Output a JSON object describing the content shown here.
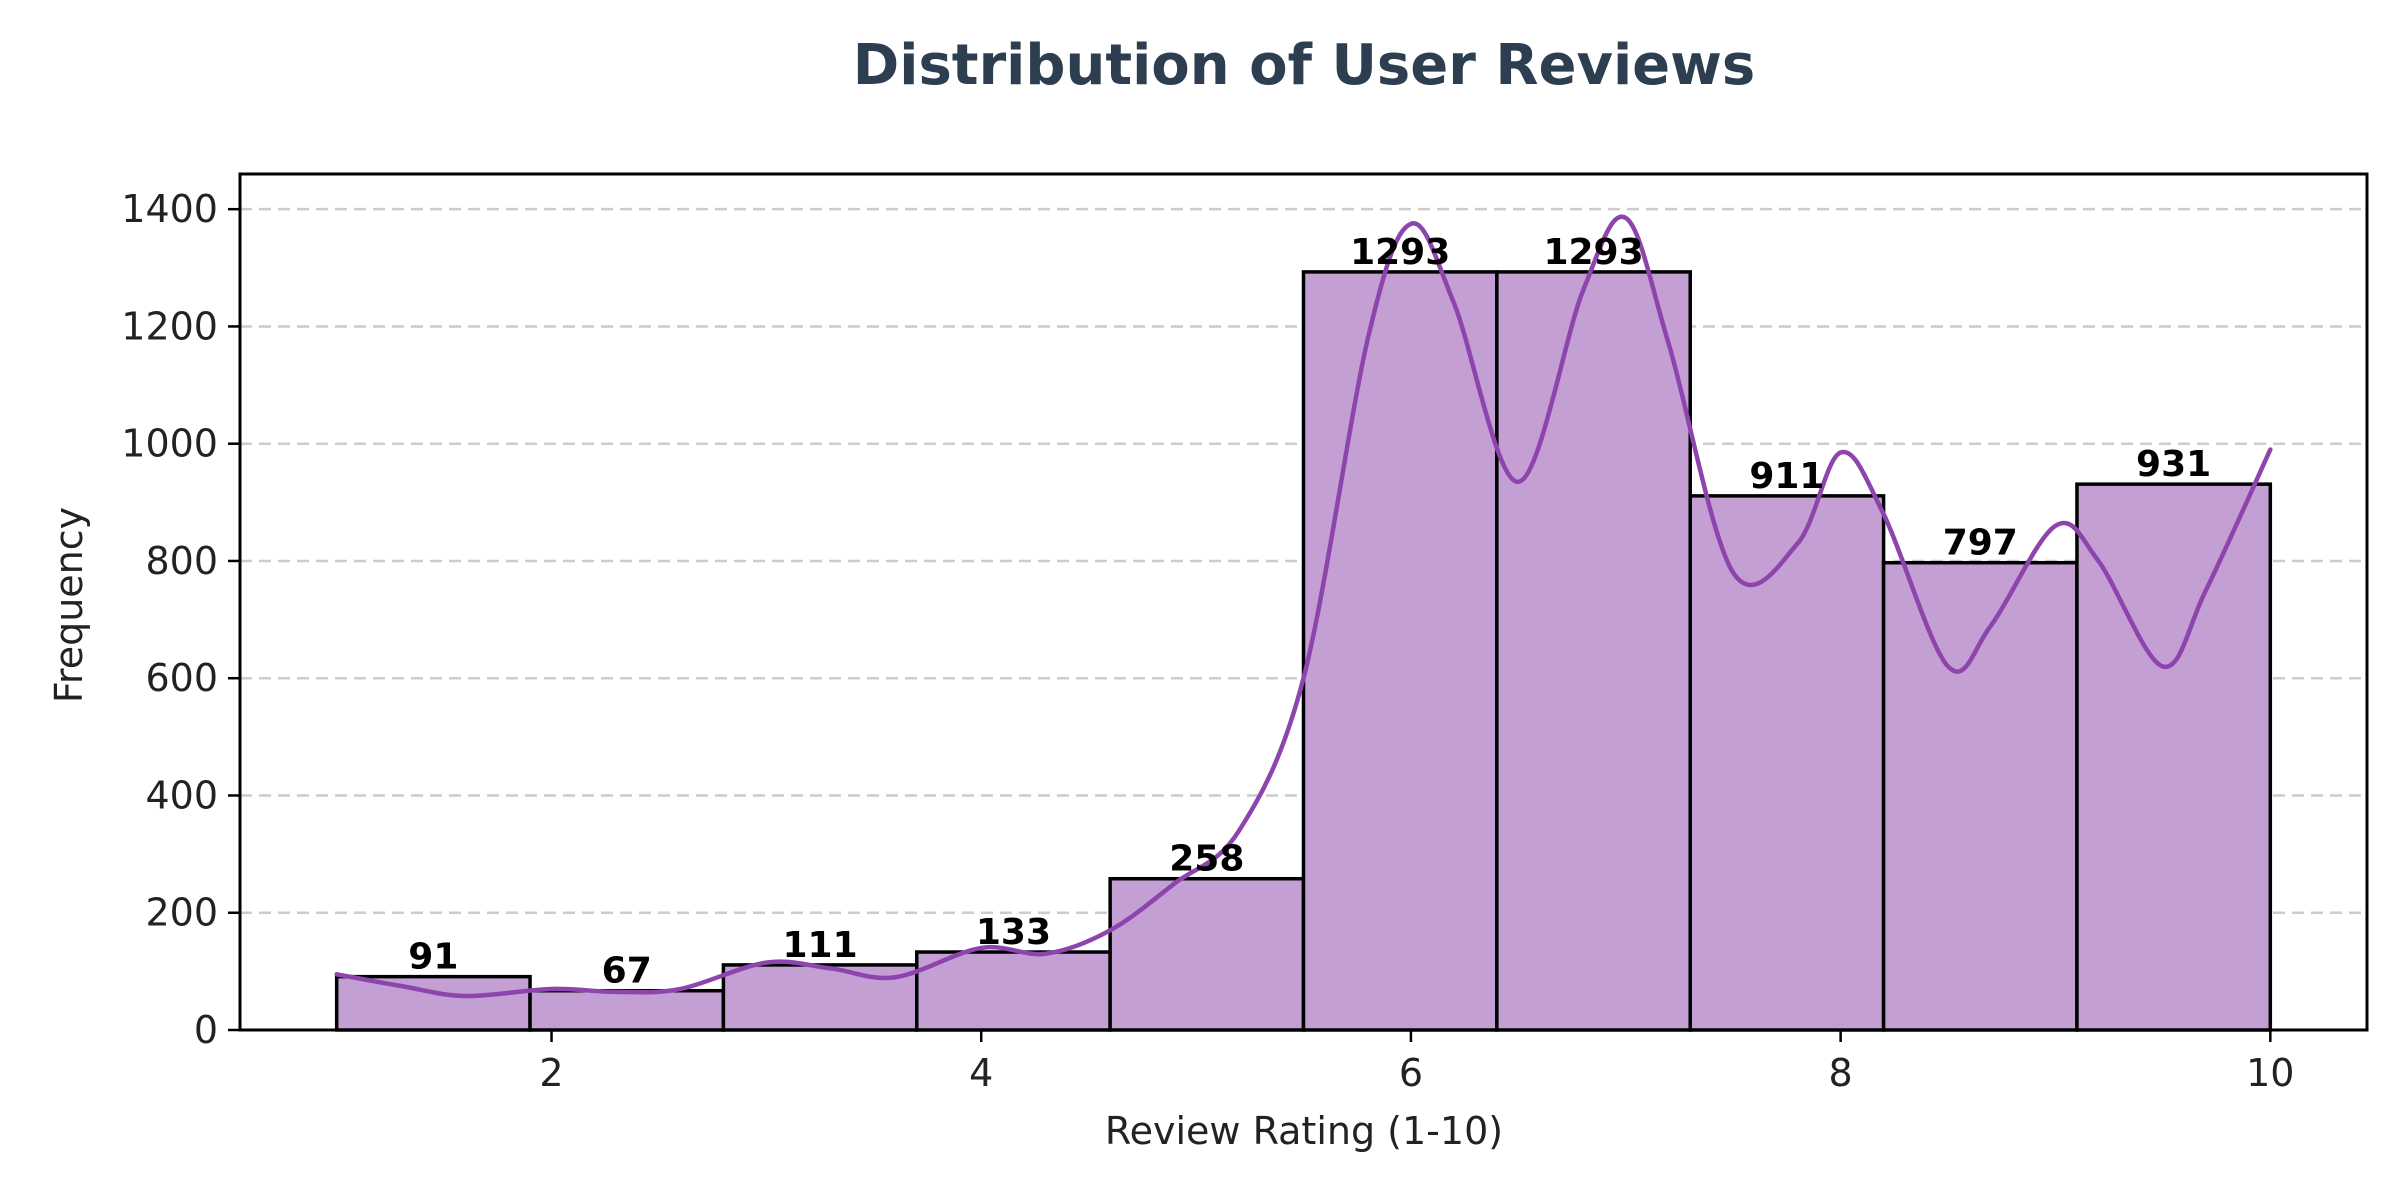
{
  "chart_data": {
    "type": "bar",
    "title": "Distribution of User Reviews",
    "xlabel": "Review Rating (1-10)",
    "ylabel": "Frequency",
    "bins": [
      {
        "start": 1.0,
        "end": 1.9,
        "value": 91
      },
      {
        "start": 1.9,
        "end": 2.8,
        "value": 67
      },
      {
        "start": 2.8,
        "end": 3.7,
        "value": 111
      },
      {
        "start": 3.7,
        "end": 4.6,
        "value": 133
      },
      {
        "start": 4.6,
        "end": 5.5,
        "value": 258
      },
      {
        "start": 5.5,
        "end": 6.4,
        "value": 1293
      },
      {
        "start": 6.4,
        "end": 7.3,
        "value": 1293
      },
      {
        "start": 7.3,
        "end": 8.2,
        "value": 911
      },
      {
        "start": 8.2,
        "end": 9.1,
        "value": 797
      },
      {
        "start": 9.1,
        "end": 10.0,
        "value": 931
      }
    ],
    "value_labels": [
      "91",
      "67",
      "111",
      "133",
      "258",
      "1293",
      "1293",
      "911",
      "797",
      "931"
    ],
    "kde": {
      "x": [
        1.0,
        1.3,
        1.6,
        2.0,
        2.3,
        2.6,
        3.0,
        3.3,
        3.6,
        4.0,
        4.3,
        4.6,
        4.9,
        5.2,
        5.5,
        5.8,
        6.0,
        6.2,
        6.5,
        6.8,
        7.0,
        7.2,
        7.5,
        7.8,
        8.0,
        8.2,
        8.5,
        8.7,
        9.0,
        9.2,
        9.5,
        9.7,
        10.0
      ],
      "y": [
        95,
        75,
        58,
        70,
        65,
        70,
        115,
        105,
        90,
        140,
        130,
        170,
        250,
        340,
        600,
        1180,
        1375,
        1240,
        935,
        1260,
        1385,
        1170,
        780,
        830,
        985,
        880,
        620,
        690,
        860,
        800,
        620,
        750,
        990
      ]
    },
    "xlim": [
      0.55,
      10.45
    ],
    "ylim": [
      0,
      1460
    ],
    "xticks": [
      2,
      4,
      6,
      8,
      10
    ],
    "yticks": [
      0,
      200,
      400,
      600,
      800,
      1000,
      1200,
      1400
    ],
    "grid": "y-dashed",
    "bar_color": "#c39fd3",
    "edge_color": "#000000",
    "line_color": "#8e44ad",
    "title_color": "#2c3e50",
    "grid_color": "#cccccc"
  }
}
